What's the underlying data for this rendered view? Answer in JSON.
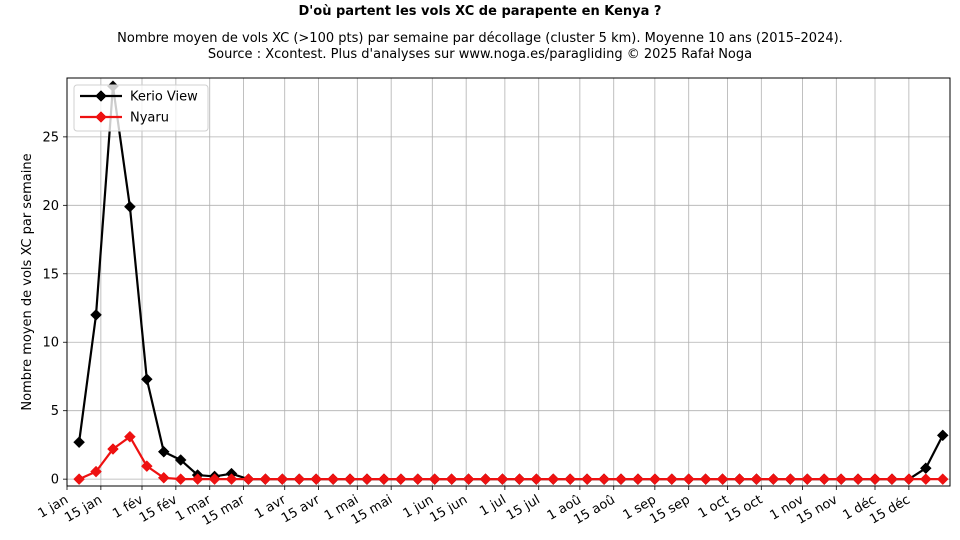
{
  "title": "D'où partent les vols XC de parapente en Kenya ?",
  "subtitle_line1": "Nombre moyen de vols XC (>100 pts) par semaine par décollage (cluster 5 km). Moyenne 10 ans (2015–2024).",
  "subtitle_line2": "Source : Xcontest. Plus d'analyses sur www.noga.es/paragliding © 2025 Rafał Noga",
  "chart_data": {
    "type": "line",
    "title": "D'où partent les vols XC de parapente en Kenya ?",
    "subtitle": "Nombre moyen de vols XC (>100 pts) par semaine par décollage (cluster 5 km). Moyenne 10 ans (2015–2024). Source : Xcontest. Plus d'analyses sur www.noga.es/paragliding © 2025 Rafał Noga",
    "xlabel": "",
    "ylabel": "Nombre moyen de vols XC par semaine",
    "ylim": [
      -0.5,
      29.3
    ],
    "yticks": [
      0,
      5,
      10,
      15,
      20,
      25
    ],
    "xlim_day_of_year": [
      1,
      366
    ],
    "xticks": [
      {
        "label": "1 jan",
        "day": 1
      },
      {
        "label": "15 jan",
        "day": 15
      },
      {
        "label": "1 fév",
        "day": 32
      },
      {
        "label": "15 fév",
        "day": 46
      },
      {
        "label": "1 mar",
        "day": 60
      },
      {
        "label": "15 mar",
        "day": 74
      },
      {
        "label": "1 avr",
        "day": 91
      },
      {
        "label": "15 avr",
        "day": 105
      },
      {
        "label": "1 mai",
        "day": 121
      },
      {
        "label": "15 mai",
        "day": 135
      },
      {
        "label": "1 jun",
        "day": 152
      },
      {
        "label": "15 jun",
        "day": 166
      },
      {
        "label": "1 jul",
        "day": 182
      },
      {
        "label": "15 jul",
        "day": 196
      },
      {
        "label": "1 aoû",
        "day": 213
      },
      {
        "label": "15 aoû",
        "day": 227
      },
      {
        "label": "1 sep",
        "day": 244
      },
      {
        "label": "15 sep",
        "day": 258
      },
      {
        "label": "1 oct",
        "day": 274
      },
      {
        "label": "15 oct",
        "day": 288
      },
      {
        "label": "1 nov",
        "day": 305
      },
      {
        "label": "15 nov",
        "day": 319
      },
      {
        "label": "1 déc",
        "day": 335
      },
      {
        "label": "15 déc",
        "day": 349
      }
    ],
    "grid": true,
    "legend_position": "upper left",
    "x_week_start_day": 6,
    "x_week_step_days": 7,
    "series": [
      {
        "name": "Kerio View",
        "color": "#000000",
        "marker": "diamond",
        "values": [
          2.7,
          12.0,
          28.7,
          19.9,
          7.3,
          2.0,
          1.4,
          0.3,
          0.2,
          0.4,
          0,
          0,
          0,
          0,
          0,
          0,
          0,
          0,
          0,
          0,
          0,
          0,
          0,
          0,
          0,
          0,
          0,
          0,
          0,
          0,
          0,
          0,
          0,
          0,
          0,
          0,
          0,
          0,
          0,
          0,
          0,
          0,
          0,
          0,
          0,
          0,
          0,
          0,
          0,
          0,
          0.8,
          3.2
        ]
      },
      {
        "name": "Nyaru",
        "color": "#ee1111",
        "marker": "diamond",
        "values": [
          0,
          0.55,
          2.2,
          3.1,
          0.95,
          0.1,
          0,
          0,
          0,
          0,
          0,
          0,
          0,
          0,
          0,
          0,
          0,
          0,
          0,
          0,
          0,
          0,
          0,
          0,
          0,
          0,
          0,
          0,
          0,
          0,
          0,
          0,
          0,
          0,
          0,
          0,
          0,
          0,
          0,
          0,
          0,
          0,
          0,
          0,
          0,
          0,
          0,
          0,
          0,
          0,
          0,
          0
        ]
      }
    ]
  }
}
